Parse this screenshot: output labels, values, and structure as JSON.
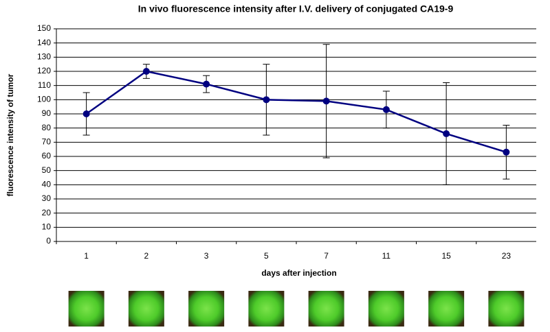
{
  "chart_data": {
    "type": "line",
    "title": "In vivo fluorescence intensity after I.V. delivery of conjugated CA19-9",
    "x_label": "days after injection",
    "y_label": "fluorescence intensity of tumor",
    "categories": [
      "1",
      "2",
      "3",
      "5",
      "7",
      "11",
      "15",
      "23"
    ],
    "values": [
      90,
      120,
      111,
      100,
      99,
      93,
      76,
      63
    ],
    "errors": [
      15,
      5,
      6,
      25,
      40,
      13,
      36,
      19
    ],
    "color": "#000080",
    "ylim": [
      0,
      150
    ],
    "yticks": [
      0,
      10,
      20,
      30,
      40,
      50,
      60,
      70,
      80,
      90,
      100,
      110,
      120,
      130,
      140,
      150
    ],
    "grid": true
  }
}
